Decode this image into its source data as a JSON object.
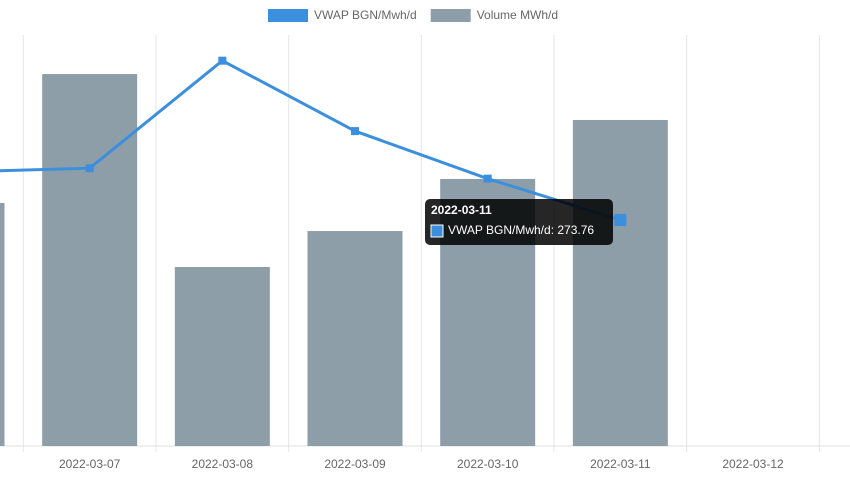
{
  "chart_data": {
    "type": "bar",
    "categories": [
      null,
      "2022-03-07",
      "2022-03-08",
      "2022-03-09",
      "2022-03-10",
      "2022-03-11",
      "2022-03-12"
    ],
    "series": [
      {
        "name": "VWAP BGN/Mwh/d",
        "type": "line",
        "axis": "y2",
        "color": "#3b8fdc",
        "values": [
          278.8,
          279.2,
          290.5,
          283.1,
          278.1,
          273.76,
          null
        ]
      },
      {
        "name": "Volume MWh/d",
        "type": "bar",
        "color": "#8d9ea9",
        "values": [
          2365,
          3620,
          1742,
          2092,
          2599,
          3173,
          null
        ]
      }
    ],
    "ylim": [
      0,
      4000
    ],
    "y2lim": [
      250,
      293.2
    ],
    "legend": "top",
    "tooltip": {
      "label": "VWAP BGN/Mwh/d: 273.76"
    }
  }
}
